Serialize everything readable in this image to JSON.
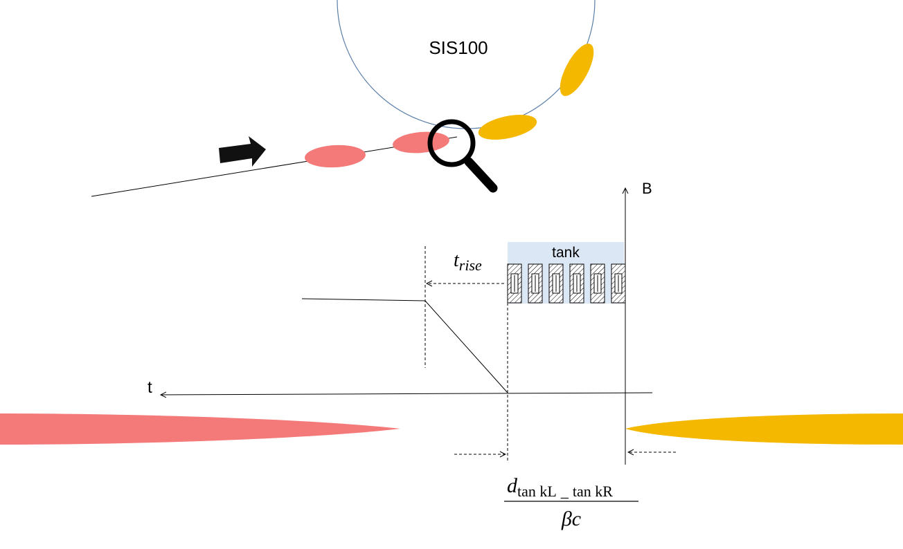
{
  "ring": {
    "label": "SIS100"
  },
  "axes": {
    "b_label": "B",
    "t_label": "t"
  },
  "tank": {
    "label": "tank",
    "cavity_count": 6
  },
  "rise": {
    "symbol": "t",
    "subscript": "rise"
  },
  "formula": {
    "numerator_symbol": "d",
    "numerator_sub_a": "tan kL",
    "numerator_sep": "_",
    "numerator_sub_b": "tan kR",
    "denominator": "βc"
  },
  "colors": {
    "injected_bunch": "#f47a7a",
    "circulating_bunch": "#f5b800",
    "ring_line": "#5a7ea8",
    "tank_fill": "#dbe7f5",
    "lines": "#000000"
  },
  "icons": {
    "arrow": "direction-arrow-icon",
    "magnifier": "magnifier-icon"
  }
}
